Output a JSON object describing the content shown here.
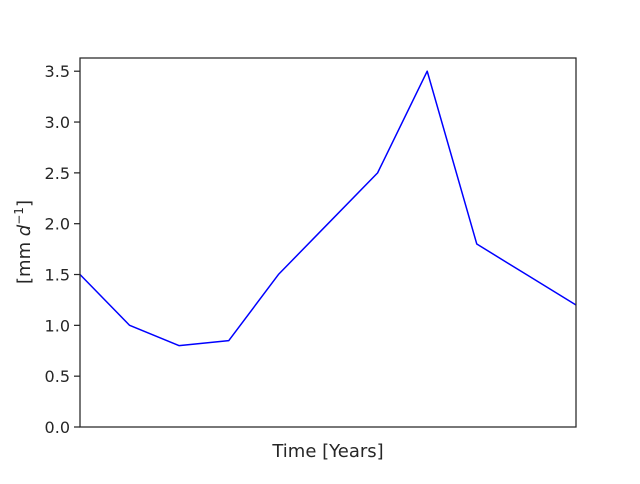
{
  "chart_data": {
    "type": "line",
    "title": "",
    "xlabel": "Time [Years]",
    "ylabel_parts": {
      "prefix": "[mm ",
      "var": "d",
      "exp": "−1",
      "suffix": "]"
    },
    "xlim": [
      0,
      10
    ],
    "ylim": [
      0,
      3.63
    ],
    "y_ticks": [
      0.0,
      0.5,
      1.0,
      1.5,
      2.0,
      2.5,
      3.0,
      3.5
    ],
    "y_tick_labels": [
      "0.0",
      "0.5",
      "1.0",
      "1.5",
      "2.0",
      "2.5",
      "3.0",
      "3.5"
    ],
    "grid": false,
    "legend": "none",
    "series": [
      {
        "color": "#0000ff",
        "x": [
          0,
          1,
          2,
          3,
          4,
          5,
          6,
          7,
          8,
          9,
          10
        ],
        "y": [
          1.5,
          1.0,
          0.8,
          0.85,
          1.5,
          2.0,
          2.5,
          3.5,
          1.8,
          1.5,
          1.2
        ]
      }
    ]
  }
}
